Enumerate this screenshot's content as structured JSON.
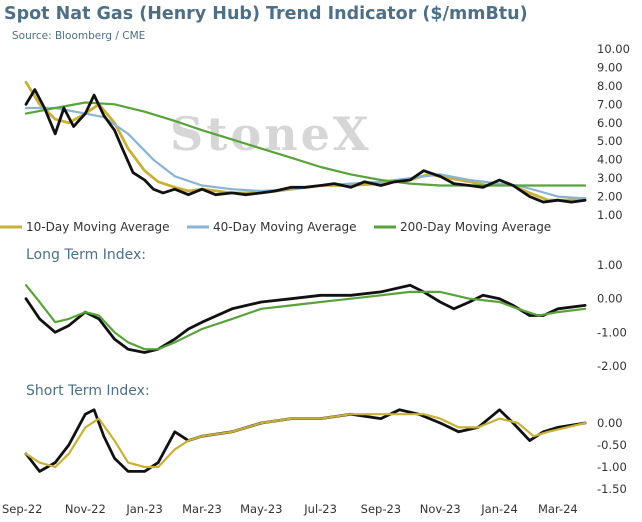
{
  "header": {
    "title": "Spot Nat Gas (Henry Hub) Trend Indicator ($/mmBtu)",
    "source": "Source: Bloomberg / CME"
  },
  "watermark": "StoneX",
  "colors": {
    "spot": "#111111",
    "ma10": "#c9b037",
    "ma40": "#8ab4d6",
    "ma200": "#5aa33c",
    "title": "#4e6f85"
  },
  "chart_data": [
    {
      "type": "line",
      "title": "Spot Nat Gas (Henry Hub) Trend Indicator ($/mmBtu)",
      "ylim": [
        1.0,
        10.0
      ],
      "yticks": [
        "10.00",
        "9.00",
        "8.00",
        "7.00",
        "6.00",
        "5.00",
        "4.00",
        "3.00",
        "2.00",
        "1.00"
      ],
      "x_ticks": [
        "Sep-22",
        "Nov-22",
        "Jan-23",
        "Mar-23",
        "May-23",
        "Jul-23",
        "Sep-23",
        "Nov-23",
        "Jan-24",
        "Mar-24"
      ],
      "x_range": [
        "2022-09-01",
        "2024-04-01"
      ],
      "legend": [
        "10-Day Moving Average",
        "40-Day Moving Average",
        "200-Day Moving Average"
      ],
      "legend_position": "bottom",
      "series": [
        {
          "name": "",
          "color_key": "spot",
          "x": [
            "2022-09-01",
            "2022-09-10",
            "2022-09-20",
            "2022-10-01",
            "2022-10-10",
            "2022-10-20",
            "2022-11-01",
            "2022-11-10",
            "2022-11-20",
            "2022-12-01",
            "2022-12-10",
            "2022-12-20",
            "2023-01-01",
            "2023-01-10",
            "2023-01-20",
            "2023-02-01",
            "2023-02-15",
            "2023-03-01",
            "2023-03-15",
            "2023-04-01",
            "2023-04-15",
            "2023-05-01",
            "2023-05-15",
            "2023-06-01",
            "2023-06-15",
            "2023-07-01",
            "2023-07-15",
            "2023-08-01",
            "2023-08-15",
            "2023-09-01",
            "2023-09-15",
            "2023-10-01",
            "2023-10-15",
            "2023-11-01",
            "2023-11-15",
            "2023-12-01",
            "2023-12-15",
            "2024-01-01",
            "2024-01-15",
            "2024-02-01",
            "2024-02-15",
            "2024-03-01",
            "2024-03-15",
            "2024-03-29"
          ],
          "values": [
            7.0,
            7.8,
            6.8,
            5.4,
            6.8,
            5.8,
            6.5,
            7.5,
            6.4,
            5.6,
            4.5,
            3.3,
            2.9,
            2.4,
            2.2,
            2.4,
            2.1,
            2.4,
            2.1,
            2.2,
            2.1,
            2.2,
            2.3,
            2.5,
            2.5,
            2.6,
            2.7,
            2.5,
            2.8,
            2.6,
            2.8,
            2.9,
            3.4,
            3.1,
            2.7,
            2.6,
            2.5,
            2.9,
            2.6,
            2.0,
            1.7,
            1.8,
            1.7,
            1.8
          ]
        },
        {
          "name": "10-Day Moving Average",
          "color_key": "ma10",
          "x": [
            "2022-09-01",
            "2022-09-15",
            "2022-10-01",
            "2022-10-15",
            "2022-11-01",
            "2022-11-15",
            "2022-12-01",
            "2022-12-15",
            "2023-01-01",
            "2023-01-15",
            "2023-02-01",
            "2023-02-15",
            "2023-03-01",
            "2023-04-01",
            "2023-05-01",
            "2023-06-01",
            "2023-07-01",
            "2023-08-01",
            "2023-09-01",
            "2023-10-01",
            "2023-10-20",
            "2023-11-10",
            "2023-12-01",
            "2023-12-20",
            "2024-01-10",
            "2024-02-01",
            "2024-02-20",
            "2024-03-10",
            "2024-03-29"
          ],
          "values": [
            8.2,
            7.0,
            6.2,
            6.0,
            6.5,
            7.0,
            6.0,
            4.6,
            3.4,
            2.8,
            2.5,
            2.3,
            2.4,
            2.2,
            2.2,
            2.4,
            2.6,
            2.6,
            2.7,
            2.9,
            3.2,
            3.0,
            2.8,
            2.6,
            2.7,
            2.2,
            1.8,
            1.8,
            1.9
          ]
        },
        {
          "name": "40-Day Moving Average",
          "color_key": "ma40",
          "x": [
            "2022-09-01",
            "2022-10-01",
            "2022-11-01",
            "2022-11-20",
            "2022-12-15",
            "2023-01-10",
            "2023-02-01",
            "2023-03-01",
            "2023-04-01",
            "2023-05-01",
            "2023-06-01",
            "2023-07-01",
            "2023-08-01",
            "2023-09-01",
            "2023-10-01",
            "2023-11-01",
            "2023-12-01",
            "2024-01-01",
            "2024-01-20",
            "2024-02-10",
            "2024-03-01",
            "2024-03-29"
          ],
          "values": [
            6.8,
            6.8,
            6.5,
            6.3,
            5.4,
            4.0,
            3.1,
            2.6,
            2.4,
            2.3,
            2.4,
            2.6,
            2.7,
            2.8,
            3.0,
            3.2,
            2.9,
            2.7,
            2.6,
            2.3,
            2.0,
            1.9
          ]
        },
        {
          "name": "200-Day Moving Average",
          "color_key": "ma200",
          "x": [
            "2022-09-01",
            "2022-10-01",
            "2022-11-01",
            "2022-12-01",
            "2023-01-01",
            "2023-02-01",
            "2023-03-01",
            "2023-04-01",
            "2023-05-01",
            "2023-06-01",
            "2023-07-01",
            "2023-08-01",
            "2023-09-01",
            "2023-10-01",
            "2023-11-01",
            "2023-12-01",
            "2024-01-01",
            "2024-02-01",
            "2024-03-01",
            "2024-03-29"
          ],
          "values": [
            6.5,
            6.8,
            7.1,
            7.0,
            6.6,
            6.1,
            5.6,
            5.1,
            4.6,
            4.1,
            3.6,
            3.2,
            2.9,
            2.7,
            2.6,
            2.6,
            2.6,
            2.6,
            2.6,
            2.6
          ]
        }
      ]
    },
    {
      "type": "line",
      "title": "Long Term Index:",
      "ylim": [
        -2.0,
        1.0
      ],
      "yticks": [
        "1.00",
        "0.00",
        "-1.00",
        "-2.00"
      ],
      "series": [
        {
          "name": "",
          "color_key": "spot",
          "x": [
            "2022-09-01",
            "2022-09-15",
            "2022-10-01",
            "2022-10-15",
            "2022-11-01",
            "2022-11-15",
            "2022-12-01",
            "2022-12-15",
            "2023-01-01",
            "2023-01-15",
            "2023-02-01",
            "2023-02-15",
            "2023-03-01",
            "2023-04-01",
            "2023-05-01",
            "2023-06-01",
            "2023-07-01",
            "2023-08-01",
            "2023-09-01",
            "2023-10-01",
            "2023-10-15",
            "2023-11-01",
            "2023-11-15",
            "2023-12-01",
            "2023-12-15",
            "2024-01-01",
            "2024-01-15",
            "2024-02-01",
            "2024-02-15",
            "2024-03-01",
            "2024-03-29"
          ],
          "values": [
            0.0,
            -0.6,
            -1.0,
            -0.8,
            -0.4,
            -0.6,
            -1.2,
            -1.5,
            -1.6,
            -1.5,
            -1.2,
            -0.9,
            -0.7,
            -0.3,
            -0.1,
            0.0,
            0.1,
            0.1,
            0.2,
            0.4,
            0.2,
            -0.1,
            -0.3,
            -0.1,
            0.1,
            0.0,
            -0.2,
            -0.5,
            -0.5,
            -0.3,
            -0.2
          ]
        },
        {
          "name": "",
          "color_key": "ma200",
          "x": [
            "2022-09-01",
            "2022-09-15",
            "2022-10-01",
            "2022-10-15",
            "2022-11-01",
            "2022-11-15",
            "2022-12-01",
            "2022-12-15",
            "2023-01-01",
            "2023-01-15",
            "2023-02-01",
            "2023-02-15",
            "2023-03-01",
            "2023-04-01",
            "2023-05-01",
            "2023-06-01",
            "2023-07-01",
            "2023-08-01",
            "2023-09-01",
            "2023-10-01",
            "2023-11-01",
            "2023-12-01",
            "2024-01-01",
            "2024-01-20",
            "2024-02-10",
            "2024-03-01",
            "2024-03-29"
          ],
          "values": [
            0.4,
            -0.1,
            -0.7,
            -0.6,
            -0.4,
            -0.5,
            -1.0,
            -1.3,
            -1.5,
            -1.5,
            -1.3,
            -1.1,
            -0.9,
            -0.6,
            -0.3,
            -0.2,
            -0.1,
            0.0,
            0.1,
            0.2,
            0.2,
            0.0,
            -0.1,
            -0.3,
            -0.5,
            -0.4,
            -0.3
          ]
        }
      ]
    },
    {
      "type": "line",
      "title": "Short Term Index:",
      "ylim": [
        -1.5,
        0.0
      ],
      "yticks": [
        "0.00",
        "-0.50",
        "-1.00",
        "-1.50"
      ],
      "series": [
        {
          "name": "",
          "color_key": "spot",
          "x": [
            "2022-09-01",
            "2022-09-15",
            "2022-10-01",
            "2022-10-15",
            "2022-11-01",
            "2022-11-10",
            "2022-11-20",
            "2022-12-01",
            "2022-12-15",
            "2023-01-01",
            "2023-01-15",
            "2023-02-01",
            "2023-02-15",
            "2023-03-01",
            "2023-04-01",
            "2023-05-01",
            "2023-06-01",
            "2023-07-01",
            "2023-08-01",
            "2023-09-01",
            "2023-09-20",
            "2023-10-10",
            "2023-11-01",
            "2023-11-20",
            "2023-12-10",
            "2024-01-01",
            "2024-01-15",
            "2024-02-01",
            "2024-02-15",
            "2024-03-01",
            "2024-03-29"
          ],
          "values": [
            -0.7,
            -1.1,
            -0.9,
            -0.5,
            0.2,
            0.3,
            -0.3,
            -0.8,
            -1.1,
            -1.1,
            -0.9,
            -0.2,
            -0.4,
            -0.3,
            -0.2,
            0.0,
            0.1,
            0.1,
            0.2,
            0.1,
            0.3,
            0.2,
            0.0,
            -0.2,
            -0.1,
            0.3,
            0.0,
            -0.4,
            -0.2,
            -0.1,
            0.0
          ]
        },
        {
          "name": "",
          "color_key": "ma10",
          "x": [
            "2022-09-01",
            "2022-09-15",
            "2022-10-01",
            "2022-10-15",
            "2022-11-01",
            "2022-11-15",
            "2022-12-01",
            "2022-12-15",
            "2023-01-01",
            "2023-01-15",
            "2023-02-01",
            "2023-02-15",
            "2023-03-01",
            "2023-04-01",
            "2023-05-01",
            "2023-06-01",
            "2023-07-01",
            "2023-08-01",
            "2023-09-01",
            "2023-09-25",
            "2023-10-15",
            "2023-11-01",
            "2023-11-20",
            "2023-12-10",
            "2024-01-01",
            "2024-01-20",
            "2024-02-05",
            "2024-02-20",
            "2024-03-10",
            "2024-03-29"
          ],
          "values": [
            -0.7,
            -0.9,
            -1.0,
            -0.7,
            -0.1,
            0.1,
            -0.4,
            -0.9,
            -1.0,
            -1.0,
            -0.6,
            -0.4,
            -0.3,
            -0.2,
            0.0,
            0.1,
            0.1,
            0.2,
            0.2,
            0.2,
            0.2,
            0.1,
            -0.1,
            -0.1,
            0.1,
            0.0,
            -0.3,
            -0.2,
            -0.1,
            0.0
          ]
        }
      ]
    }
  ]
}
